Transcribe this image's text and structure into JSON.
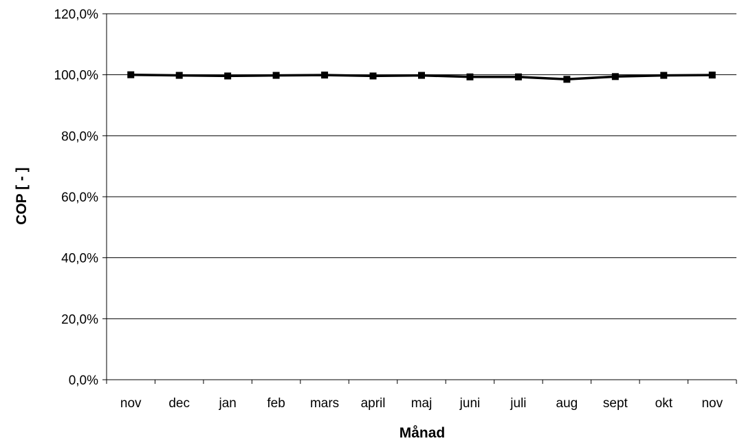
{
  "chart_data": {
    "type": "line",
    "title": "",
    "xlabel": "Månad",
    "ylabel": "COP [ - ]",
    "ylim": [
      0,
      120
    ],
    "yticks": [
      0,
      20,
      40,
      60,
      80,
      100,
      120
    ],
    "ytick_labels": [
      "0,0%",
      "20,0%",
      "40,0%",
      "60,0%",
      "80,0%",
      "100,0%",
      "120,0%"
    ],
    "categories": [
      "nov",
      "dec",
      "jan",
      "feb",
      "mars",
      "april",
      "maj",
      "juni",
      "juli",
      "aug",
      "sept",
      "okt",
      "nov"
    ],
    "series": [
      {
        "values": [
          100.0,
          99.8,
          99.6,
          99.8,
          99.9,
          99.6,
          99.8,
          99.3,
          99.3,
          98.5,
          99.4,
          99.8,
          99.9
        ]
      }
    ],
    "grid": "horizontal",
    "legend": "none",
    "colors": {
      "line": "#000000",
      "grid": "#000000",
      "background": "#ffffff"
    }
  }
}
